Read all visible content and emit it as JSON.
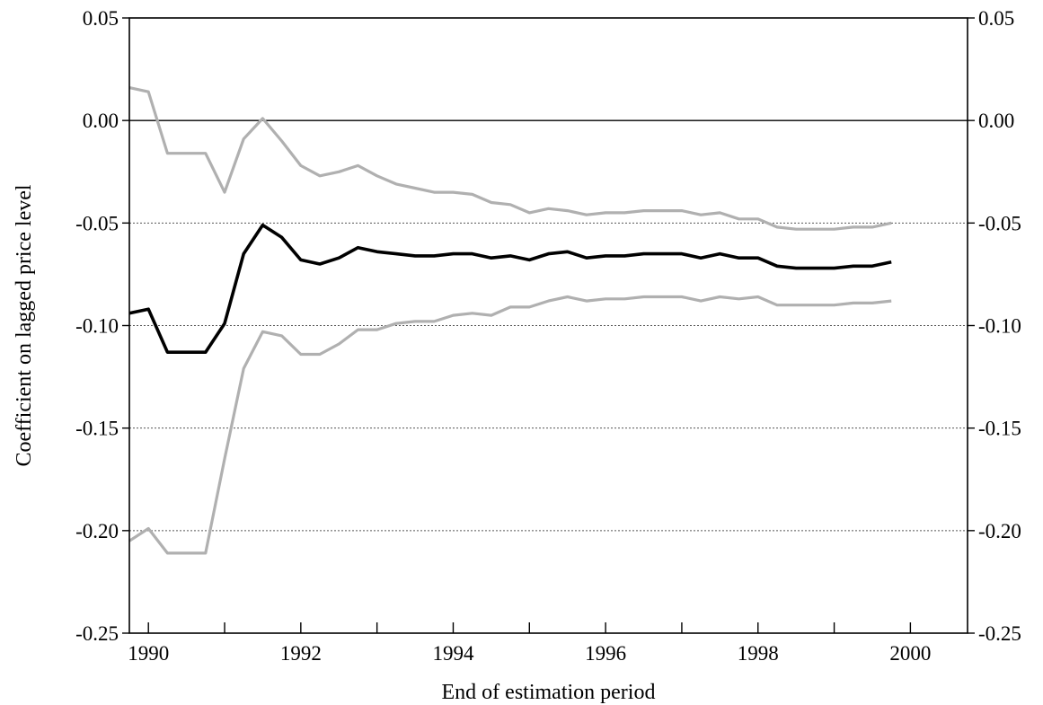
{
  "chart_data": {
    "type": "line",
    "title": "",
    "xlabel": "End of estimation period",
    "ylabel": "Coefficient on lagged price level",
    "xlim": [
      1989.75,
      2000.75
    ],
    "ylim": [
      -0.25,
      0.05
    ],
    "x_ticks": [
      1990,
      1992,
      1994,
      1996,
      1998,
      2000
    ],
    "x_minor_ticks": [
      1990,
      1991,
      1992,
      1993,
      1994,
      1995,
      1996,
      1997,
      1998,
      1999,
      2000
    ],
    "y_ticks": [
      -0.25,
      -0.2,
      -0.15,
      -0.1,
      -0.05,
      0.0,
      0.05
    ],
    "y_tick_labels": [
      "-0.25",
      "-0.20",
      "-0.15",
      "-0.10",
      "-0.05",
      "0.00",
      "0.05"
    ],
    "y_gridlines": [
      -0.2,
      -0.15,
      -0.1,
      -0.05
    ],
    "zero_line": 0.0,
    "dual_y_axis": true,
    "legend": "none",
    "colors": {
      "estimate": "#000000",
      "bands": "#b0b0b0",
      "grid": "#555555"
    },
    "x": [
      1989.75,
      1990.0,
      1990.25,
      1990.5,
      1990.75,
      1991.0,
      1991.25,
      1991.5,
      1991.75,
      1992.0,
      1992.25,
      1992.5,
      1992.75,
      1993.0,
      1993.25,
      1993.5,
      1993.75,
      1994.0,
      1994.25,
      1994.5,
      1994.75,
      1995.0,
      1995.25,
      1995.5,
      1995.75,
      1996.0,
      1996.25,
      1996.5,
      1996.75,
      1997.0,
      1997.25,
      1997.5,
      1997.75,
      1998.0,
      1998.25,
      1998.5,
      1998.75,
      1999.0,
      1999.25,
      1999.5,
      1999.75
    ],
    "series": [
      {
        "role": "upper-band",
        "values": [
          0.016,
          0.014,
          -0.016,
          -0.016,
          -0.016,
          -0.035,
          -0.009,
          0.001,
          -0.01,
          -0.022,
          -0.027,
          -0.025,
          -0.022,
          -0.027,
          -0.031,
          -0.033,
          -0.035,
          -0.035,
          -0.036,
          -0.04,
          -0.041,
          -0.045,
          -0.043,
          -0.044,
          -0.046,
          -0.045,
          -0.045,
          -0.044,
          -0.044,
          -0.044,
          -0.046,
          -0.045,
          -0.048,
          -0.048,
          -0.052,
          -0.053,
          -0.053,
          -0.053,
          -0.052,
          -0.052,
          -0.05
        ]
      },
      {
        "role": "estimate",
        "values": [
          -0.094,
          -0.092,
          -0.113,
          -0.113,
          -0.113,
          -0.099,
          -0.065,
          -0.051,
          -0.057,
          -0.068,
          -0.07,
          -0.067,
          -0.062,
          -0.064,
          -0.065,
          -0.066,
          -0.066,
          -0.065,
          -0.065,
          -0.067,
          -0.066,
          -0.068,
          -0.065,
          -0.064,
          -0.067,
          -0.066,
          -0.066,
          -0.065,
          -0.065,
          -0.065,
          -0.067,
          -0.065,
          -0.067,
          -0.067,
          -0.071,
          -0.072,
          -0.072,
          -0.072,
          -0.071,
          -0.071,
          -0.069
        ]
      },
      {
        "role": "lower-band",
        "values": [
          -0.205,
          -0.199,
          -0.211,
          -0.211,
          -0.211,
          -0.165,
          -0.121,
          -0.103,
          -0.105,
          -0.114,
          -0.114,
          -0.109,
          -0.102,
          -0.102,
          -0.099,
          -0.098,
          -0.098,
          -0.095,
          -0.094,
          -0.095,
          -0.091,
          -0.091,
          -0.088,
          -0.086,
          -0.088,
          -0.087,
          -0.087,
          -0.086,
          -0.086,
          -0.086,
          -0.088,
          -0.086,
          -0.087,
          -0.086,
          -0.09,
          -0.09,
          -0.09,
          -0.09,
          -0.089,
          -0.089,
          -0.088
        ]
      }
    ]
  }
}
